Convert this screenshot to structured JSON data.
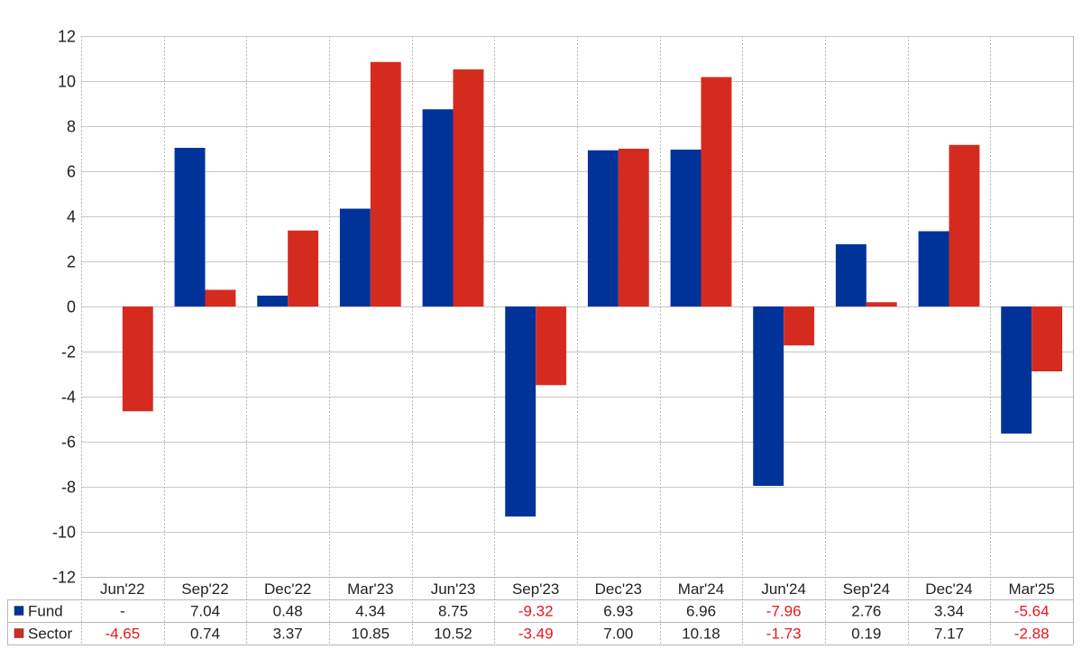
{
  "chart_data": {
    "type": "bar",
    "categories": [
      "Jun'22",
      "Sep'22",
      "Dec'22",
      "Mar'23",
      "Jun'23",
      "Sep'23",
      "Dec'23",
      "Mar'24",
      "Jun'24",
      "Sep'24",
      "Dec'24",
      "Mar'25"
    ],
    "series": [
      {
        "name": "Fund",
        "color": "#003399",
        "values": [
          null,
          7.04,
          0.48,
          4.34,
          8.75,
          -9.32,
          6.93,
          6.96,
          -7.96,
          2.76,
          3.34,
          -5.64
        ],
        "display": [
          "-",
          "7.04",
          "0.48",
          "4.34",
          "8.75",
          "-9.32",
          "6.93",
          "6.96",
          "-7.96",
          "2.76",
          "3.34",
          "-5.64"
        ]
      },
      {
        "name": "Sector",
        "color": "#d52b1e",
        "values": [
          -4.65,
          0.74,
          3.37,
          10.85,
          10.52,
          -3.49,
          7.0,
          10.18,
          -1.73,
          0.19,
          7.17,
          -2.88
        ],
        "display": [
          "-4.65",
          "0.74",
          "3.37",
          "10.85",
          "10.52",
          "-3.49",
          "7.00",
          "10.18",
          "-1.73",
          "0.19",
          "7.17",
          "-2.88"
        ]
      }
    ],
    "title": "",
    "xlabel": "",
    "ylabel": "",
    "ylim": [
      -12,
      12
    ],
    "yticks": [
      -12,
      -10,
      -8,
      -6,
      -4,
      -2,
      0,
      2,
      4,
      6,
      8,
      10,
      12
    ],
    "grid": true,
    "legend": "data-table-left",
    "negative_value_color": "#e8161b"
  }
}
